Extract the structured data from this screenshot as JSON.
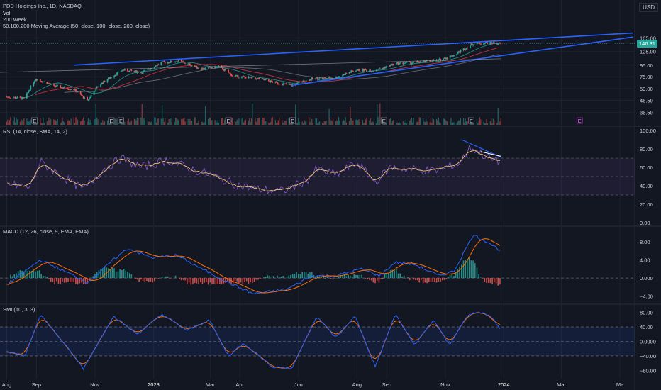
{
  "header": {
    "symbol_line": "PDD Holdings Inc., 1D, NASDAQ",
    "vol_label": "Vol",
    "week_label": "200 Week",
    "ma_label": "50,100,200 Moving Average (50, close, 100, close, 200, close)",
    "currency": "USD"
  },
  "colors": {
    "background": "#131722",
    "grid": "#1e222d",
    "up": "#26a69a",
    "down": "#ef5350",
    "trendline": "#2962ff",
    "rsi": "#7e57c2",
    "rsi_ma": "#f2c46b",
    "macd": "#2962ff",
    "signal": "#ff6d00",
    "smi": "#2962ff",
    "smi_signal": "#ff6d00"
  },
  "chart_data": [
    {
      "type": "candlestick",
      "title": "PDD Holdings Inc., 1D, NASDAQ",
      "y_scale": "log",
      "ylim": [
        30,
        200
      ],
      "y_ticks": [
        "165.00",
        "125.00",
        "95.00",
        "75.00",
        "59.00",
        "46.50",
        "36.50"
      ],
      "last_price": "146.31",
      "x_ticks": [
        "Aug",
        "Sep",
        "Nov",
        "2023",
        "Mar",
        "Apr",
        "Jun",
        "Aug",
        "Sep",
        "Nov",
        "2024",
        "Mar",
        "Ma"
      ],
      "close_path": [
        [
          "2022-08-01",
          50
        ],
        [
          "2022-08-20",
          48
        ],
        [
          "2022-08-31",
          72
        ],
        [
          "2022-09-20",
          62
        ],
        [
          "2022-10-10",
          58
        ],
        [
          "2022-10-24",
          46
        ],
        [
          "2022-11-05",
          63
        ],
        [
          "2022-11-30",
          86
        ],
        [
          "2022-12-20",
          82
        ],
        [
          "2023-01-10",
          100
        ],
        [
          "2023-01-27",
          103
        ],
        [
          "2023-02-20",
          88
        ],
        [
          "2023-03-10",
          92
        ],
        [
          "2023-03-25",
          76
        ],
        [
          "2023-04-20",
          72
        ],
        [
          "2023-05-10",
          66
        ],
        [
          "2023-05-25",
          63
        ],
        [
          "2023-06-15",
          72
        ],
        [
          "2023-07-10",
          74
        ],
        [
          "2023-07-31",
          86
        ],
        [
          "2023-08-20",
          85
        ],
        [
          "2023-09-10",
          98
        ],
        [
          "2023-09-30",
          100
        ],
        [
          "2023-10-25",
          105
        ],
        [
          "2023-11-10",
          116
        ],
        [
          "2023-11-30",
          146
        ],
        [
          "2023-12-18",
          150
        ],
        [
          "2023-12-29",
          146
        ]
      ],
      "moving_averages": [
        "50",
        "100",
        "200"
      ],
      "trendlines": [
        "upper channel line",
        "lower channel line"
      ],
      "event_markers": [
        "E",
        "E",
        "E",
        "E",
        "E",
        "E",
        "E",
        "E"
      ]
    },
    {
      "type": "line",
      "title": "RSI (14, close, SMA, 14, 2)",
      "ylim": [
        0,
        100
      ],
      "y_ticks": [
        "100.00",
        "80.00",
        "60.00",
        "40.00",
        "20.00",
        "0.00"
      ],
      "bands": [
        30,
        50,
        70
      ],
      "series": [
        {
          "name": "RSI",
          "path": [
            [
              "2022-08-01",
              42
            ],
            [
              "2022-08-25",
              38
            ],
            [
              "2022-09-05",
              66
            ],
            [
              "2022-09-25",
              52
            ],
            [
              "2022-10-20",
              36
            ],
            [
              "2022-11-10",
              58
            ],
            [
              "2022-11-28",
              70
            ],
            [
              "2022-12-20",
              60
            ],
            [
              "2023-01-15",
              68
            ],
            [
              "2023-02-10",
              58
            ],
            [
              "2023-03-01",
              52
            ],
            [
              "2023-03-25",
              42
            ],
            [
              "2023-04-20",
              36
            ],
            [
              "2023-05-15",
              34
            ],
            [
              "2023-06-10",
              46
            ],
            [
              "2023-06-20",
              58
            ],
            [
              "2023-07-10",
              52
            ],
            [
              "2023-08-01",
              65
            ],
            [
              "2023-08-20",
              44
            ],
            [
              "2023-09-05",
              60
            ],
            [
              "2023-09-25",
              58
            ],
            [
              "2023-10-20",
              56
            ],
            [
              "2023-11-15",
              64
            ],
            [
              "2023-11-28",
              82
            ],
            [
              "2023-12-10",
              74
            ],
            [
              "2023-12-20",
              68
            ],
            [
              "2023-12-29",
              66
            ]
          ]
        }
      ]
    },
    {
      "type": "line",
      "title": "MACD (12, 26, close, 9, EMA, EMA)",
      "ylim": [
        -5,
        10.5
      ],
      "y_ticks": [
        "8.00",
        "4.00",
        "0.000",
        "−4.00"
      ],
      "series": [
        {
          "name": "MACD",
          "path": [
            [
              "2022-08-01",
              -1.5
            ],
            [
              "2022-09-05",
              4.0
            ],
            [
              "2022-09-30",
              1.5
            ],
            [
              "2022-10-25",
              -1.0
            ],
            [
              "2022-11-20",
              4.0
            ],
            [
              "2022-12-05",
              6.5
            ],
            [
              "2022-12-30",
              4.5
            ],
            [
              "2023-01-25",
              5.0
            ],
            [
              "2023-02-25",
              1.5
            ],
            [
              "2023-03-20",
              -1.0
            ],
            [
              "2023-04-15",
              -3.5
            ],
            [
              "2023-05-20",
              -2.5
            ],
            [
              "2023-06-15",
              0.5
            ],
            [
              "2023-07-10",
              0.5
            ],
            [
              "2023-08-05",
              2.0
            ],
            [
              "2023-08-25",
              0.5
            ],
            [
              "2023-09-10",
              3.5
            ],
            [
              "2023-09-30",
              3.0
            ],
            [
              "2023-10-25",
              0.5
            ],
            [
              "2023-11-10",
              1.5
            ],
            [
              "2023-11-30",
              9.5
            ],
            [
              "2023-12-15",
              8.0
            ],
            [
              "2023-12-29",
              6.0
            ]
          ]
        }
      ]
    },
    {
      "type": "line",
      "title": "SMI (10, 3, 3)",
      "ylim": [
        -95,
        95
      ],
      "y_ticks": [
        "80.00",
        "40.00",
        "0.0000",
        "−40.00",
        "−80.00"
      ],
      "bands": [
        40,
        0,
        -40
      ],
      "series": [
        {
          "name": "SMI",
          "path": [
            [
              "2022-08-01",
              -30
            ],
            [
              "2022-08-20",
              -40
            ],
            [
              "2022-09-05",
              75
            ],
            [
              "2022-09-25",
              10
            ],
            [
              "2022-10-20",
              -75
            ],
            [
              "2022-11-20",
              70
            ],
            [
              "2022-12-15",
              20
            ],
            [
              "2023-01-10",
              75
            ],
            [
              "2023-02-05",
              30
            ],
            [
              "2023-02-28",
              60
            ],
            [
              "2023-03-20",
              -40
            ],
            [
              "2023-04-05",
              -5
            ],
            [
              "2023-05-05",
              -70
            ],
            [
              "2023-05-25",
              -75
            ],
            [
              "2023-06-20",
              70
            ],
            [
              "2023-07-10",
              10
            ],
            [
              "2023-07-30",
              70
            ],
            [
              "2023-08-20",
              -70
            ],
            [
              "2023-09-10",
              75
            ],
            [
              "2023-09-30",
              -10
            ],
            [
              "2023-10-20",
              60
            ],
            [
              "2023-11-05",
              -10
            ],
            [
              "2023-11-25",
              75
            ],
            [
              "2023-12-10",
              80
            ],
            [
              "2023-12-20",
              65
            ],
            [
              "2023-12-29",
              30
            ]
          ]
        }
      ]
    }
  ]
}
